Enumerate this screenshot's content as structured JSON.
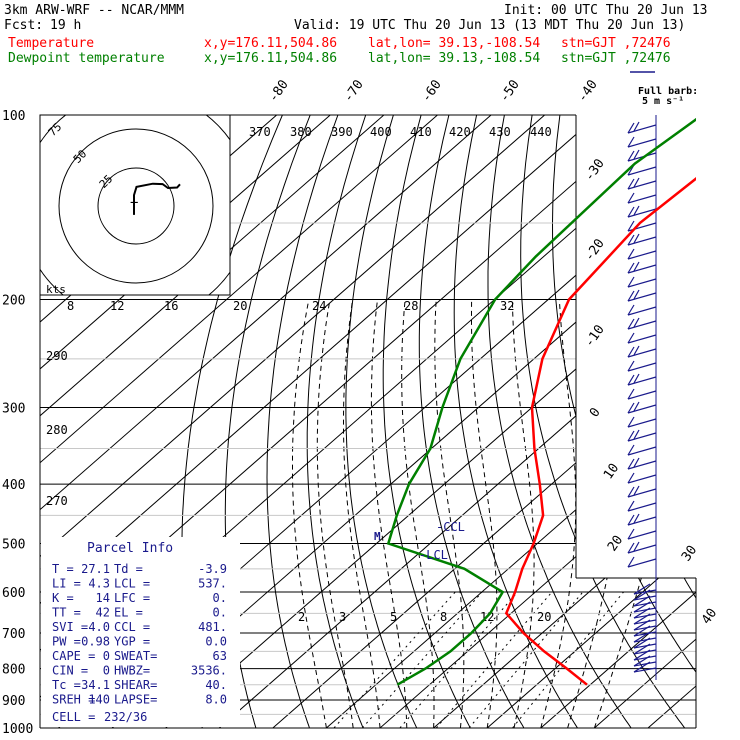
{
  "header": {
    "model": "3km ARW-WRF -- NCAR/MMM",
    "init": "Init: 00 UTC Thu 20 Jun 13",
    "fcst_label": "Fcst:",
    "fcst_value": "19 h",
    "valid": "Valid: 19 UTC Thu 20 Jun 13 (13 MDT Thu 20 Jun 13)",
    "temp_line": {
      "label": "Temperature",
      "xy": "x,y=176.11,504.86",
      "latlon": "lat,lon= 39.13,-108.54",
      "stn": "stn=GJT ,72476",
      "color": "#ff0000"
    },
    "dew_line": {
      "label": "Dewpoint temperature",
      "xy": "x,y=176.11,504.86",
      "latlon": "lat,lon= 39.13,-108.54",
      "stn": "stn=GJT ,72476",
      "color": "#008000"
    }
  },
  "barb_legend": {
    "title": "Full barb:",
    "value": "5 m s⁻¹"
  },
  "hodograph": {
    "unit_label": "kts",
    "ring_labels": [
      "25",
      "50",
      "75"
    ],
    "x_axis_labels": [
      "8",
      "12",
      "16",
      "20",
      "24",
      "28",
      "32"
    ]
  },
  "theta_labels": [
    "370",
    "380",
    "390",
    "400",
    "410",
    "420",
    "430",
    "440"
  ],
  "theta_left_labels": [
    "290",
    "280",
    "270"
  ],
  "mixing_ratio_labels": [
    "2",
    "3",
    "5",
    "8",
    "12",
    "20"
  ],
  "markers": {
    "ccl": "-CCL",
    "lcl": "-LCL",
    "m": "M"
  },
  "parcel_info": {
    "title": "Parcel Info",
    "rows": [
      [
        "T  =",
        "27.1",
        "Td =",
        "-3.9"
      ],
      [
        "LI =",
        "4.3",
        "LCL =",
        "537."
      ],
      [
        "K  =",
        "14",
        "LFC =",
        "0."
      ],
      [
        "TT =",
        "42",
        "EL =",
        "0."
      ],
      [
        "SVI =",
        "4.0",
        "CCL =",
        "481."
      ],
      [
        "PW =",
        "0.98",
        "YGP =",
        "0.0"
      ],
      [
        "CAPE =",
        "0",
        "SWEAT=",
        "63"
      ],
      [
        "CIN =",
        "0",
        "HWBZ=",
        "3536."
      ],
      [
        "Tc =",
        "34.1",
        "SHEAR=",
        "40."
      ],
      [
        "SREH =",
        "140",
        "LAPSE=",
        "8.0"
      ]
    ],
    "cell_label": "CELL =",
    "cell_value": "232/36"
  },
  "chart_data": {
    "type": "line",
    "title": "",
    "xlabel": "",
    "ylabel": "",
    "y_scale": "log (pressure, hPa)",
    "pressure_ticks": [
      "100",
      "200",
      "300",
      "400",
      "500",
      "600",
      "700",
      "800",
      "900",
      "1000"
    ],
    "temp_tick_labels": [
      "-80",
      "-70",
      "-60",
      "-50",
      "-40",
      "-30",
      "-20",
      "-10",
      "0",
      "10",
      "20",
      "30",
      "40"
    ],
    "series": [
      {
        "name": "Temperature",
        "color": "#ff0000",
        "x_units": "deg C",
        "points": [
          [
            29.4,
            850
          ],
          [
            22.2,
            800
          ],
          [
            14.3,
            750
          ],
          [
            6.5,
            700
          ],
          [
            -0.9,
            650
          ],
          [
            -3.8,
            600
          ],
          [
            -7.4,
            550
          ],
          [
            -10.7,
            500
          ],
          [
            -14.9,
            450
          ],
          [
            -22.2,
            400
          ],
          [
            -30.8,
            350
          ],
          [
            -40.0,
            300
          ],
          [
            -48.4,
            250
          ],
          [
            -56.1,
            200
          ],
          [
            -59.2,
            150
          ],
          [
            -57.6,
            115
          ],
          [
            -56.6,
            100
          ]
        ]
      },
      {
        "name": "Dewpoint temperature",
        "color": "#008000",
        "x_units": "deg C",
        "points": [
          [
            -6.0,
            850
          ],
          [
            -4.2,
            800
          ],
          [
            -3.2,
            750
          ],
          [
            -3.2,
            700
          ],
          [
            -3.9,
            650
          ],
          [
            -6.1,
            600
          ],
          [
            -18.2,
            550
          ],
          [
            -37.8,
            500
          ],
          [
            -42.2,
            450
          ],
          [
            -46.6,
            400
          ],
          [
            -50.2,
            350
          ],
          [
            -56.7,
            300
          ],
          [
            -63.7,
            250
          ],
          [
            -69.9,
            200
          ],
          [
            -71.5,
            170
          ],
          [
            -72.8,
            120
          ],
          [
            -70.6,
            100
          ]
        ]
      }
    ],
    "hodograph_trace": [
      [
        -1.3,
        -5.8
      ],
      [
        -1.3,
        7.1
      ],
      [
        0.3,
        12.4
      ],
      [
        10.9,
        14.5
      ],
      [
        17.3,
        14.2
      ],
      [
        20.8,
        11.7
      ],
      [
        26.7,
        12.0
      ],
      [
        28.6,
        14.1
      ]
    ],
    "wind_barbs": "upper levels: 5-15 m/s from WNW; near surface: ~25 m/s"
  }
}
